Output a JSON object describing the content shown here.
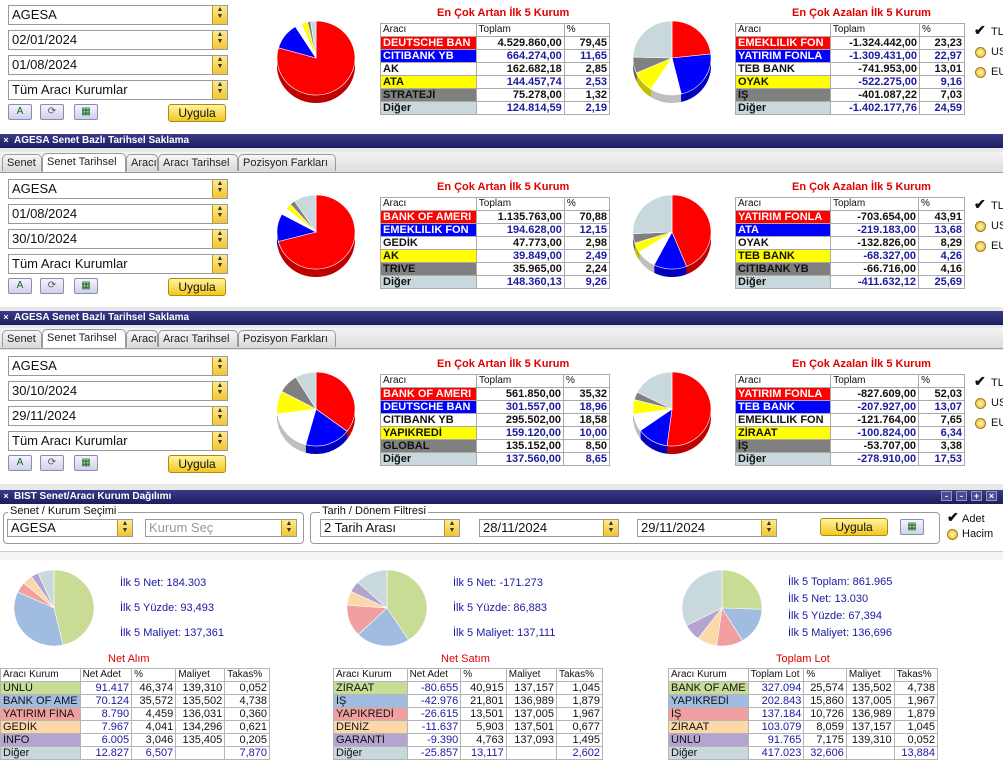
{
  "colors": {
    "red": "#ff0000",
    "blue": "#0000ff",
    "yellow": "#ffff00",
    "grey": "#808080",
    "lightblue": "#c8d8dc",
    "white": "#ffffff",
    "titlebar": "#1c1c5e"
  },
  "icons": {
    "a_btn": "font-a-icon",
    "refresh_btn": "refresh-icon",
    "excel_btn": "excel-icon",
    "checkbox": "checkmark-icon",
    "radio": "radio-icon",
    "close": "close-icon"
  },
  "panels": [
    {
      "window_title": "",
      "tabs": [],
      "broker": "AGESA",
      "date_start": "02/01/2024",
      "date_end": "01/08/2024",
      "kurum": "Tüm Aracı Kurumlar",
      "apply": "Uygula",
      "inc": {
        "title": "En Çok Artan İlk 5 Kurum",
        "h": [
          "Aracı",
          "Toplam",
          "%"
        ],
        "rows": [
          {
            "name": "DEUTSCHE BAN",
            "total": "4.529.860,00",
            "pct": "79,45",
            "bg": "#ff0000",
            "fg": "#ffffff",
            "tfg": "#111111"
          },
          {
            "name": "CITIBANK YB",
            "total": "664.274,00",
            "pct": "11,65",
            "bg": "#0000ff",
            "fg": "#ffffff",
            "tfg": "#1a1aa0"
          },
          {
            "name": "AK",
            "total": "162.682,18",
            "pct": "2,85",
            "bg": "#ffffff",
            "fg": "#111111",
            "tfg": "#111111"
          },
          {
            "name": "ATA",
            "total": "144.457,74",
            "pct": "2,53",
            "bg": "#ffff00",
            "fg": "#111111",
            "tfg": "#1a1aa0"
          },
          {
            "name": "STRATEJİ",
            "total": "75.278,00",
            "pct": "1,32",
            "bg": "#808080",
            "fg": "#111111",
            "tfg": "#111111"
          },
          {
            "name": "Diğer",
            "total": "124.814,59",
            "pct": "2,19",
            "bg": "#c8d8dc",
            "fg": "#111111",
            "tfg": "#1a1aa0"
          }
        ],
        "pie": [
          79.45,
          11.65,
          2.85,
          2.53,
          1.32,
          2.19
        ]
      },
      "dec": {
        "title": "En Çok Azalan İlk 5 Kurum",
        "h": [
          "Aracı",
          "Toplam",
          "%"
        ],
        "rows": [
          {
            "name": "EMEKLILIK FON",
            "total": "-1.324.442,00",
            "pct": "23,23",
            "bg": "#ff0000",
            "fg": "#ffffff",
            "tfg": "#111111"
          },
          {
            "name": "YATIRIM FONLA",
            "total": "-1.309.431,00",
            "pct": "22,97",
            "bg": "#0000ff",
            "fg": "#ffffff",
            "tfg": "#1a1aa0"
          },
          {
            "name": "TEB BANK",
            "total": "-741.953,00",
            "pct": "13,01",
            "bg": "#ffffff",
            "fg": "#111111",
            "tfg": "#111111"
          },
          {
            "name": "OYAK",
            "total": "-522.275,00",
            "pct": "9,16",
            "bg": "#ffff00",
            "fg": "#111111",
            "tfg": "#1a1aa0"
          },
          {
            "name": "İŞ",
            "total": "-401.087,22",
            "pct": "7,03",
            "bg": "#808080",
            "fg": "#111111",
            "tfg": "#111111"
          },
          {
            "name": "Diğer",
            "total": "-1.402.177,76",
            "pct": "24,59",
            "bg": "#c8d8dc",
            "fg": "#111111",
            "tfg": "#1a1aa0"
          }
        ],
        "pie": [
          23.23,
          22.97,
          13.01,
          9.16,
          7.03,
          24.59
        ]
      },
      "radios": [
        "TL",
        "US",
        "EU"
      ]
    },
    {
      "window_title": "AGESA Senet Bazlı Tarihsel Saklama",
      "tabs": [
        "Senet",
        "Senet Tarihsel",
        "Aracı",
        "Aracı Tarihsel",
        "Pozisyon Farkları"
      ],
      "broker": "AGESA",
      "date_start": "01/08/2024",
      "date_end": "30/10/2024",
      "kurum": "Tüm Aracı Kurumlar",
      "apply": "Uygula",
      "inc": {
        "title": "En Çok Artan İlk 5 Kurum",
        "h": [
          "Aracı",
          "Toplam",
          "%"
        ],
        "rows": [
          {
            "name": "BANK OF AMERI",
            "total": "1.135.763,00",
            "pct": "70,88",
            "bg": "#ff0000",
            "fg": "#ffffff",
            "tfg": "#111111"
          },
          {
            "name": "EMEKLILIK FON",
            "total": "194.628,00",
            "pct": "12,15",
            "bg": "#0000ff",
            "fg": "#ffffff",
            "tfg": "#1a1aa0"
          },
          {
            "name": "GEDİK",
            "total": "47.773,00",
            "pct": "2,98",
            "bg": "#ffffff",
            "fg": "#111111",
            "tfg": "#111111"
          },
          {
            "name": "AK",
            "total": "39.849,00",
            "pct": "2,49",
            "bg": "#ffff00",
            "fg": "#111111",
            "tfg": "#1a1aa0"
          },
          {
            "name": "TRIVE",
            "total": "35.965,00",
            "pct": "2,24",
            "bg": "#808080",
            "fg": "#111111",
            "tfg": "#111111"
          },
          {
            "name": "Diğer",
            "total": "148.360,13",
            "pct": "9,26",
            "bg": "#c8d8dc",
            "fg": "#111111",
            "tfg": "#1a1aa0"
          }
        ],
        "pie": [
          70.88,
          12.15,
          2.98,
          2.49,
          2.24,
          9.26
        ]
      },
      "dec": {
        "title": "En Çok Azalan İlk 5 Kurum",
        "h": [
          "Aracı",
          "Toplam",
          "%"
        ],
        "rows": [
          {
            "name": "YATIRIM FONLA",
            "total": "-703.654,00",
            "pct": "43,91",
            "bg": "#ff0000",
            "fg": "#ffffff",
            "tfg": "#111111"
          },
          {
            "name": "ATA",
            "total": "-219.183,00",
            "pct": "13,68",
            "bg": "#0000ff",
            "fg": "#ffffff",
            "tfg": "#1a1aa0"
          },
          {
            "name": "OYAK",
            "total": "-132.826,00",
            "pct": "8,29",
            "bg": "#ffffff",
            "fg": "#111111",
            "tfg": "#111111"
          },
          {
            "name": "TEB BANK",
            "total": "-68.327,00",
            "pct": "4,26",
            "bg": "#ffff00",
            "fg": "#111111",
            "tfg": "#1a1aa0"
          },
          {
            "name": "CITIBANK YB",
            "total": "-66.716,00",
            "pct": "4,16",
            "bg": "#808080",
            "fg": "#111111",
            "tfg": "#111111"
          },
          {
            "name": "Diğer",
            "total": "-411.632,12",
            "pct": "25,69",
            "bg": "#c8d8dc",
            "fg": "#111111",
            "tfg": "#1a1aa0"
          }
        ],
        "pie": [
          43.91,
          13.68,
          8.29,
          4.26,
          4.16,
          25.69
        ]
      },
      "radios": [
        "TL",
        "US",
        "EU"
      ]
    },
    {
      "window_title": "AGESA Senet Bazlı Tarihsel Saklama",
      "tabs": [
        "Senet",
        "Senet Tarihsel",
        "Aracı",
        "Aracı Tarihsel",
        "Pozisyon Farkları"
      ],
      "broker": "AGESA",
      "date_start": "30/10/2024",
      "date_end": "29/11/2024",
      "kurum": "Tüm Aracı Kurumlar",
      "apply": "Uygula",
      "inc": {
        "title": "En Çok Artan İlk 5 Kurum",
        "h": [
          "Aracı",
          "Toplam",
          "%"
        ],
        "rows": [
          {
            "name": "BANK OF AMERI",
            "total": "561.850,00",
            "pct": "35,32",
            "bg": "#ff0000",
            "fg": "#ffffff",
            "tfg": "#111111"
          },
          {
            "name": "DEUTSCHE BAN",
            "total": "301.557,00",
            "pct": "18,96",
            "bg": "#0000ff",
            "fg": "#ffffff",
            "tfg": "#1a1aa0"
          },
          {
            "name": "CITIBANK YB",
            "total": "295.502,00",
            "pct": "18,58",
            "bg": "#ffffff",
            "fg": "#111111",
            "tfg": "#111111"
          },
          {
            "name": "YAPIKREDİ",
            "total": "159.120,00",
            "pct": "10,00",
            "bg": "#ffff00",
            "fg": "#111111",
            "tfg": "#1a1aa0"
          },
          {
            "name": "GLOBAL",
            "total": "135.152,00",
            "pct": "8,50",
            "bg": "#808080",
            "fg": "#111111",
            "tfg": "#111111"
          },
          {
            "name": "Diğer",
            "total": "137.560,00",
            "pct": "8,65",
            "bg": "#c8d8dc",
            "fg": "#111111",
            "tfg": "#1a1aa0"
          }
        ],
        "pie": [
          35.32,
          18.96,
          18.58,
          10.0,
          8.5,
          8.65
        ]
      },
      "dec": {
        "title": "En Çok Azalan İlk 5 Kurum",
        "h": [
          "Aracı",
          "Toplam",
          "%"
        ],
        "rows": [
          {
            "name": "YATIRIM FONLA",
            "total": "-827.609,00",
            "pct": "52,03",
            "bg": "#ff0000",
            "fg": "#ffffff",
            "tfg": "#111111"
          },
          {
            "name": "TEB BANK",
            "total": "-207.927,00",
            "pct": "13,07",
            "bg": "#0000ff",
            "fg": "#ffffff",
            "tfg": "#1a1aa0"
          },
          {
            "name": "EMEKLILIK FON",
            "total": "-121.764,00",
            "pct": "7,65",
            "bg": "#ffffff",
            "fg": "#111111",
            "tfg": "#111111"
          },
          {
            "name": "ZİRAAT",
            "total": "-100.824,00",
            "pct": "6,34",
            "bg": "#ffff00",
            "fg": "#111111",
            "tfg": "#1a1aa0"
          },
          {
            "name": "İŞ",
            "total": "-53.707,00",
            "pct": "3,38",
            "bg": "#808080",
            "fg": "#111111",
            "tfg": "#111111"
          },
          {
            "name": "Diğer",
            "total": "-278.910,00",
            "pct": "17,53",
            "bg": "#c8d8dc",
            "fg": "#111111",
            "tfg": "#1a1aa0"
          }
        ],
        "pie": [
          52.03,
          13.07,
          7.65,
          6.34,
          3.38,
          17.53
        ]
      },
      "radios": [
        "TL",
        "US",
        "EU"
      ]
    }
  ],
  "bist": {
    "window_title": "BIST Senet/Aracı Kurum Dağılımı",
    "win_buttons": [
      "-",
      "-",
      "+",
      "×"
    ],
    "group1_label": "Senet / Kurum Seçimi",
    "broker": "AGESA",
    "kurum_placeholder": "Kurum Seç",
    "group2_label": "Tarih / Dönem Filtresi",
    "period": "2 Tarih Arası",
    "date_start": "28/11/2024",
    "date_end": "29/11/2024",
    "apply": "Uygula",
    "opt_adet": "Adet",
    "opt_hacim": "Hacim",
    "pastel": [
      "#c8dc96",
      "#a0bce0",
      "#f0a0a0",
      "#fcd8a8",
      "#b4a4d0",
      "#c8d8dc"
    ],
    "blocks": [
      {
        "label": "Net Alım",
        "stats": [
          "İlk 5 Net: 184.303",
          "İlk 5 Yüzde: 93,493",
          "İlk 5 Maliyet: 137,361"
        ],
        "h": [
          "Aracı Kurum",
          "Net Adet",
          "%",
          "Maliyet",
          "Takas%"
        ],
        "rows": [
          {
            "name": "ÜNLÜ",
            "a": "91.417",
            "p": "46,374",
            "m": "139,310",
            "t": "0,052",
            "bg": "#c8dc96"
          },
          {
            "name": "BANK OF AME",
            "a": "70.124",
            "p": "35,572",
            "m": "135,502",
            "t": "4,738",
            "bg": "#a0bce0"
          },
          {
            "name": "YATIRIM FİNA",
            "a": "8.790",
            "p": "4,459",
            "m": "136,031",
            "t": "0,360",
            "bg": "#f0a0a0"
          },
          {
            "name": "GEDİK",
            "a": "7.967",
            "p": "4,041",
            "m": "134,296",
            "t": "0,621",
            "bg": "#fcd8a8"
          },
          {
            "name": "İNFO",
            "a": "6.005",
            "p": "3,046",
            "m": "135,405",
            "t": "0,205",
            "bg": "#b4a4d0"
          },
          {
            "name": "Diğer",
            "a": "12.827",
            "p": "6,507",
            "m": "",
            "t": "7,870",
            "bg": "#c8d8dc"
          }
        ],
        "pie": [
          46.374,
          35.572,
          4.459,
          4.041,
          3.046,
          6.507
        ]
      },
      {
        "label": "Net Satım",
        "stats": [
          "İlk 5 Net: -171.273",
          "İlk 5 Yüzde: 86,883",
          "İlk 5 Maliyet: 137,111"
        ],
        "h": [
          "Aracı Kurum",
          "Net Adet",
          "%",
          "Maliyet",
          "Takas%"
        ],
        "rows": [
          {
            "name": "ZİRAAT",
            "a": "-80.655",
            "p": "40,915",
            "m": "137,157",
            "t": "1,045",
            "bg": "#c8dc96"
          },
          {
            "name": "İŞ",
            "a": "-42.976",
            "p": "21,801",
            "m": "136,989",
            "t": "1,879",
            "bg": "#a0bce0"
          },
          {
            "name": "YAPIKREDİ",
            "a": "-26.615",
            "p": "13,501",
            "m": "137,005",
            "t": "1,967",
            "bg": "#f0a0a0"
          },
          {
            "name": "DENİZ",
            "a": "-11.637",
            "p": "5,903",
            "m": "137,501",
            "t": "0,677",
            "bg": "#fcd8a8"
          },
          {
            "name": "GARANTİ",
            "a": "-9.390",
            "p": "4,763",
            "m": "137,093",
            "t": "1,495",
            "bg": "#b4a4d0"
          },
          {
            "name": "Diğer",
            "a": "-25.857",
            "p": "13,117",
            "m": "",
            "t": "2,602",
            "bg": "#c8d8dc"
          }
        ],
        "pie": [
          40.915,
          21.801,
          13.501,
          5.903,
          4.763,
          13.117
        ]
      },
      {
        "label": "Toplam Lot",
        "stats": [
          "İlk 5 Toplam: 861.965",
          "İlk 5 Net: 13.030",
          "İlk 5 Yüzde: 67,394",
          "İlk 5 Maliyet: 136,696"
        ],
        "h": [
          "Aracı Kurum",
          "Toplam Lot",
          "%",
          "Maliyet",
          "Takas%"
        ],
        "rows": [
          {
            "name": "BANK OF AME",
            "a": "327.094",
            "p": "25,574",
            "m": "135,502",
            "t": "4,738",
            "bg": "#c8dc96"
          },
          {
            "name": "YAPIKREDİ",
            "a": "202.843",
            "p": "15,860",
            "m": "137,005",
            "t": "1,967",
            "bg": "#a0bce0"
          },
          {
            "name": "İŞ",
            "a": "137.184",
            "p": "10,726",
            "m": "136,989",
            "t": "1,879",
            "bg": "#f0a0a0"
          },
          {
            "name": "ZİRAAT",
            "a": "103.079",
            "p": "8,059",
            "m": "137,157",
            "t": "1,045",
            "bg": "#fcd8a8"
          },
          {
            "name": "ÜNLÜ",
            "a": "91.765",
            "p": "7,175",
            "m": "139,310",
            "t": "0,052",
            "bg": "#b4a4d0"
          },
          {
            "name": "Diğer",
            "a": "417.023",
            "p": "32,606",
            "m": "",
            "t": "13,884",
            "bg": "#c8d8dc"
          }
        ],
        "pie": [
          25.574,
          15.86,
          10.726,
          8.059,
          7.175,
          32.606
        ]
      }
    ]
  }
}
